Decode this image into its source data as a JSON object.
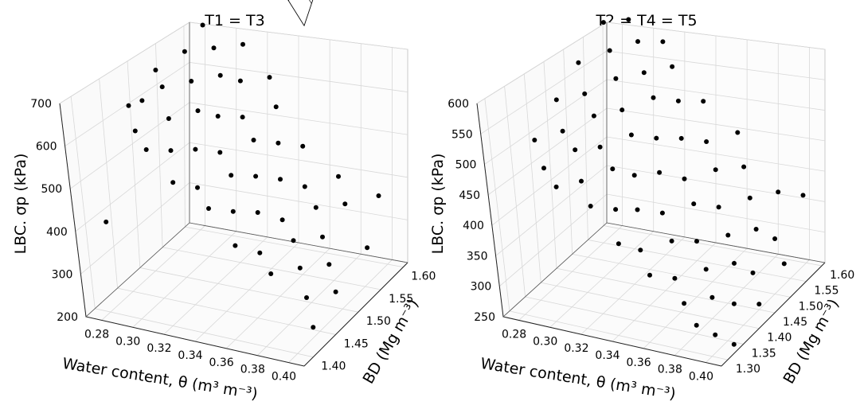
{
  "chart_data": [
    {
      "type": "surface3d_scatter",
      "title": "T1 = T3",
      "xlabel": "Water content, θ (m³ m⁻³)",
      "zlabel": "BD (Mg m⁻³)",
      "ylabel": "LBC. σp (kPa)",
      "x_ticks": [
        "0.28",
        "0.30",
        "0.32",
        "0.34",
        "0.36",
        "0.38",
        "0.40"
      ],
      "z_ticks": [
        "1.40",
        "1.45",
        "1.50",
        "1.55",
        "1.60"
      ],
      "y_ticks": [
        "200",
        "300",
        "400",
        "500",
        "600",
        "700"
      ],
      "xlim": [
        0.27,
        0.41
      ],
      "zlim": [
        1.38,
        1.61
      ],
      "ylim": [
        200,
        700
      ],
      "surface": {
        "x_range": [
          0.27,
          0.41
        ],
        "z_range": [
          1.38,
          1.61
        ],
        "a": 2100,
        "b": -5000,
        "c": 150
      },
      "points": [
        {
          "x": 0.28,
          "bd": 1.44,
          "y": 640
        },
        {
          "x": 0.28,
          "bd": 1.47,
          "y": 620
        },
        {
          "x": 0.28,
          "bd": 1.5,
          "y": 660
        },
        {
          "x": 0.29,
          "bd": 1.42,
          "y": 610
        },
        {
          "x": 0.29,
          "bd": 1.48,
          "y": 650
        },
        {
          "x": 0.29,
          "bd": 1.53,
          "y": 680
        },
        {
          "x": 0.29,
          "bd": 1.57,
          "y": 700
        },
        {
          "x": 0.3,
          "bd": 1.41,
          "y": 585
        },
        {
          "x": 0.3,
          "bd": 1.46,
          "y": 605
        },
        {
          "x": 0.3,
          "bd": 1.51,
          "y": 640
        },
        {
          "x": 0.3,
          "bd": 1.56,
          "y": 665
        },
        {
          "x": 0.31,
          "bd": 1.43,
          "y": 570
        },
        {
          "x": 0.31,
          "bd": 1.49,
          "y": 600
        },
        {
          "x": 0.31,
          "bd": 1.54,
          "y": 630
        },
        {
          "x": 0.31,
          "bd": 1.59,
          "y": 650
        },
        {
          "x": 0.32,
          "bd": 1.4,
          "y": 535
        },
        {
          "x": 0.32,
          "bd": 1.45,
          "y": 560
        },
        {
          "x": 0.32,
          "bd": 1.5,
          "y": 585
        },
        {
          "x": 0.32,
          "bd": 1.55,
          "y": 615
        },
        {
          "x": 0.33,
          "bd": 1.42,
          "y": 510
        },
        {
          "x": 0.33,
          "bd": 1.47,
          "y": 540
        },
        {
          "x": 0.33,
          "bd": 1.52,
          "y": 570
        },
        {
          "x": 0.33,
          "bd": 1.58,
          "y": 600
        },
        {
          "x": 0.34,
          "bd": 1.41,
          "y": 480
        },
        {
          "x": 0.34,
          "bd": 1.46,
          "y": 505
        },
        {
          "x": 0.34,
          "bd": 1.51,
          "y": 535
        },
        {
          "x": 0.34,
          "bd": 1.56,
          "y": 560
        },
        {
          "x": 0.35,
          "bd": 1.43,
          "y": 460
        },
        {
          "x": 0.35,
          "bd": 1.48,
          "y": 490
        },
        {
          "x": 0.35,
          "bd": 1.53,
          "y": 515
        },
        {
          "x": 0.36,
          "bd": 1.4,
          "y": 420
        },
        {
          "x": 0.36,
          "bd": 1.45,
          "y": 445
        },
        {
          "x": 0.36,
          "bd": 1.5,
          "y": 470
        },
        {
          "x": 0.36,
          "bd": 1.55,
          "y": 495
        },
        {
          "x": 0.37,
          "bd": 1.42,
          "y": 390
        },
        {
          "x": 0.37,
          "bd": 1.47,
          "y": 415
        },
        {
          "x": 0.37,
          "bd": 1.52,
          "y": 440
        },
        {
          "x": 0.38,
          "bd": 1.41,
          "y": 360
        },
        {
          "x": 0.38,
          "bd": 1.46,
          "y": 385
        },
        {
          "x": 0.38,
          "bd": 1.51,
          "y": 410
        },
        {
          "x": 0.38,
          "bd": 1.56,
          "y": 430
        },
        {
          "x": 0.39,
          "bd": 1.44,
          "y": 350
        },
        {
          "x": 0.39,
          "bd": 1.49,
          "y": 370
        },
        {
          "x": 0.39,
          "bd": 1.54,
          "y": 395
        },
        {
          "x": 0.4,
          "bd": 1.42,
          "y": 310
        },
        {
          "x": 0.4,
          "bd": 1.47,
          "y": 335
        },
        {
          "x": 0.4,
          "bd": 1.58,
          "y": 380
        },
        {
          "x": 0.41,
          "bd": 1.45,
          "y": 300
        },
        {
          "x": 0.41,
          "bd": 1.52,
          "y": 330
        },
        {
          "x": 0.41,
          "bd": 1.4,
          "y": 270
        },
        {
          "x": 0.28,
          "bd": 1.39,
          "y": 420
        }
      ]
    },
    {
      "type": "surface3d_scatter",
      "title": "T2 = T4 = T5",
      "xlabel": "Water content, θ (m³ m⁻³)",
      "zlabel": "BD (Mg m⁻³)",
      "ylabel": "LBC. σp (kPa)",
      "x_ticks": [
        "0.28",
        "0.30",
        "0.32",
        "0.34",
        "0.36",
        "0.38",
        "0.40"
      ],
      "z_ticks": [
        "1.30",
        "1.35",
        "1.40",
        "1.45",
        "1.50",
        "1.55",
        "1.60"
      ],
      "y_ticks": [
        "250",
        "300",
        "350",
        "400",
        "450",
        "500",
        "550",
        "600"
      ],
      "xlim": [
        0.27,
        0.41
      ],
      "zlim": [
        1.28,
        1.61
      ],
      "ylim": [
        250,
        600
      ],
      "surface": {
        "x_range": [
          0.27,
          0.41
        ],
        "z_range": [
          1.28,
          1.61
        ],
        "a": 1250,
        "b": -2500,
        "c": 375
      },
      "points": [
        {
          "x": 0.28,
          "bd": 1.33,
          "y": 520
        },
        {
          "x": 0.28,
          "bd": 1.4,
          "y": 550
        },
        {
          "x": 0.28,
          "bd": 1.47,
          "y": 575
        },
        {
          "x": 0.28,
          "bd": 1.55,
          "y": 600
        },
        {
          "x": 0.29,
          "bd": 1.31,
          "y": 490
        },
        {
          "x": 0.29,
          "bd": 1.37,
          "y": 520
        },
        {
          "x": 0.29,
          "bd": 1.44,
          "y": 545
        },
        {
          "x": 0.29,
          "bd": 1.52,
          "y": 575
        },
        {
          "x": 0.29,
          "bd": 1.58,
          "y": 595
        },
        {
          "x": 0.3,
          "bd": 1.3,
          "y": 470
        },
        {
          "x": 0.3,
          "bd": 1.36,
          "y": 500
        },
        {
          "x": 0.3,
          "bd": 1.42,
          "y": 525
        },
        {
          "x": 0.3,
          "bd": 1.49,
          "y": 550
        },
        {
          "x": 0.3,
          "bd": 1.56,
          "y": 575
        },
        {
          "x": 0.31,
          "bd": 1.33,
          "y": 470
        },
        {
          "x": 0.31,
          "bd": 1.39,
          "y": 495
        },
        {
          "x": 0.31,
          "bd": 1.46,
          "y": 520
        },
        {
          "x": 0.31,
          "bd": 1.53,
          "y": 545
        },
        {
          "x": 0.31,
          "bd": 1.59,
          "y": 565
        },
        {
          "x": 0.32,
          "bd": 1.31,
          "y": 445
        },
        {
          "x": 0.32,
          "bd": 1.38,
          "y": 470
        },
        {
          "x": 0.32,
          "bd": 1.44,
          "y": 495
        },
        {
          "x": 0.32,
          "bd": 1.51,
          "y": 520
        },
        {
          "x": 0.32,
          "bd": 1.57,
          "y": 540
        },
        {
          "x": 0.33,
          "bd": 1.34,
          "y": 430
        },
        {
          "x": 0.33,
          "bd": 1.4,
          "y": 455
        },
        {
          "x": 0.33,
          "bd": 1.47,
          "y": 480
        },
        {
          "x": 0.33,
          "bd": 1.54,
          "y": 505
        },
        {
          "x": 0.34,
          "bd": 1.3,
          "y": 400
        },
        {
          "x": 0.34,
          "bd": 1.36,
          "y": 425
        },
        {
          "x": 0.34,
          "bd": 1.43,
          "y": 450
        },
        {
          "x": 0.34,
          "bd": 1.5,
          "y": 470
        },
        {
          "x": 0.34,
          "bd": 1.57,
          "y": 495
        },
        {
          "x": 0.35,
          "bd": 1.32,
          "y": 385
        },
        {
          "x": 0.35,
          "bd": 1.39,
          "y": 410
        },
        {
          "x": 0.35,
          "bd": 1.46,
          "y": 430
        },
        {
          "x": 0.35,
          "bd": 1.53,
          "y": 455
        },
        {
          "x": 0.36,
          "bd": 1.3,
          "y": 360
        },
        {
          "x": 0.36,
          "bd": 1.37,
          "y": 380
        },
        {
          "x": 0.36,
          "bd": 1.44,
          "y": 405
        },
        {
          "x": 0.36,
          "bd": 1.51,
          "y": 425
        },
        {
          "x": 0.36,
          "bd": 1.58,
          "y": 450
        },
        {
          "x": 0.37,
          "bd": 1.33,
          "y": 345
        },
        {
          "x": 0.37,
          "bd": 1.4,
          "y": 370
        },
        {
          "x": 0.37,
          "bd": 1.47,
          "y": 390
        },
        {
          "x": 0.37,
          "bd": 1.55,
          "y": 415
        },
        {
          "x": 0.38,
          "bd": 1.31,
          "y": 320
        },
        {
          "x": 0.38,
          "bd": 1.38,
          "y": 340
        },
        {
          "x": 0.38,
          "bd": 1.45,
          "y": 360
        },
        {
          "x": 0.38,
          "bd": 1.52,
          "y": 385
        },
        {
          "x": 0.39,
          "bd": 1.3,
          "y": 295
        },
        {
          "x": 0.39,
          "bd": 1.35,
          "y": 315
        },
        {
          "x": 0.39,
          "bd": 1.42,
          "y": 335
        },
        {
          "x": 0.39,
          "bd": 1.49,
          "y": 355
        },
        {
          "x": 0.39,
          "bd": 1.56,
          "y": 380
        },
        {
          "x": 0.4,
          "bd": 1.31,
          "y": 280
        },
        {
          "x": 0.4,
          "bd": 1.37,
          "y": 300
        },
        {
          "x": 0.4,
          "bd": 1.43,
          "y": 320
        },
        {
          "x": 0.4,
          "bd": 1.5,
          "y": 340
        },
        {
          "x": 0.4,
          "bd": 1.59,
          "y": 365
        },
        {
          "x": 0.41,
          "bd": 1.32,
          "y": 265
        },
        {
          "x": 0.41,
          "bd": 1.4,
          "y": 290
        },
        {
          "x": 0.41,
          "bd": 1.48,
          "y": 315
        }
      ]
    }
  ]
}
